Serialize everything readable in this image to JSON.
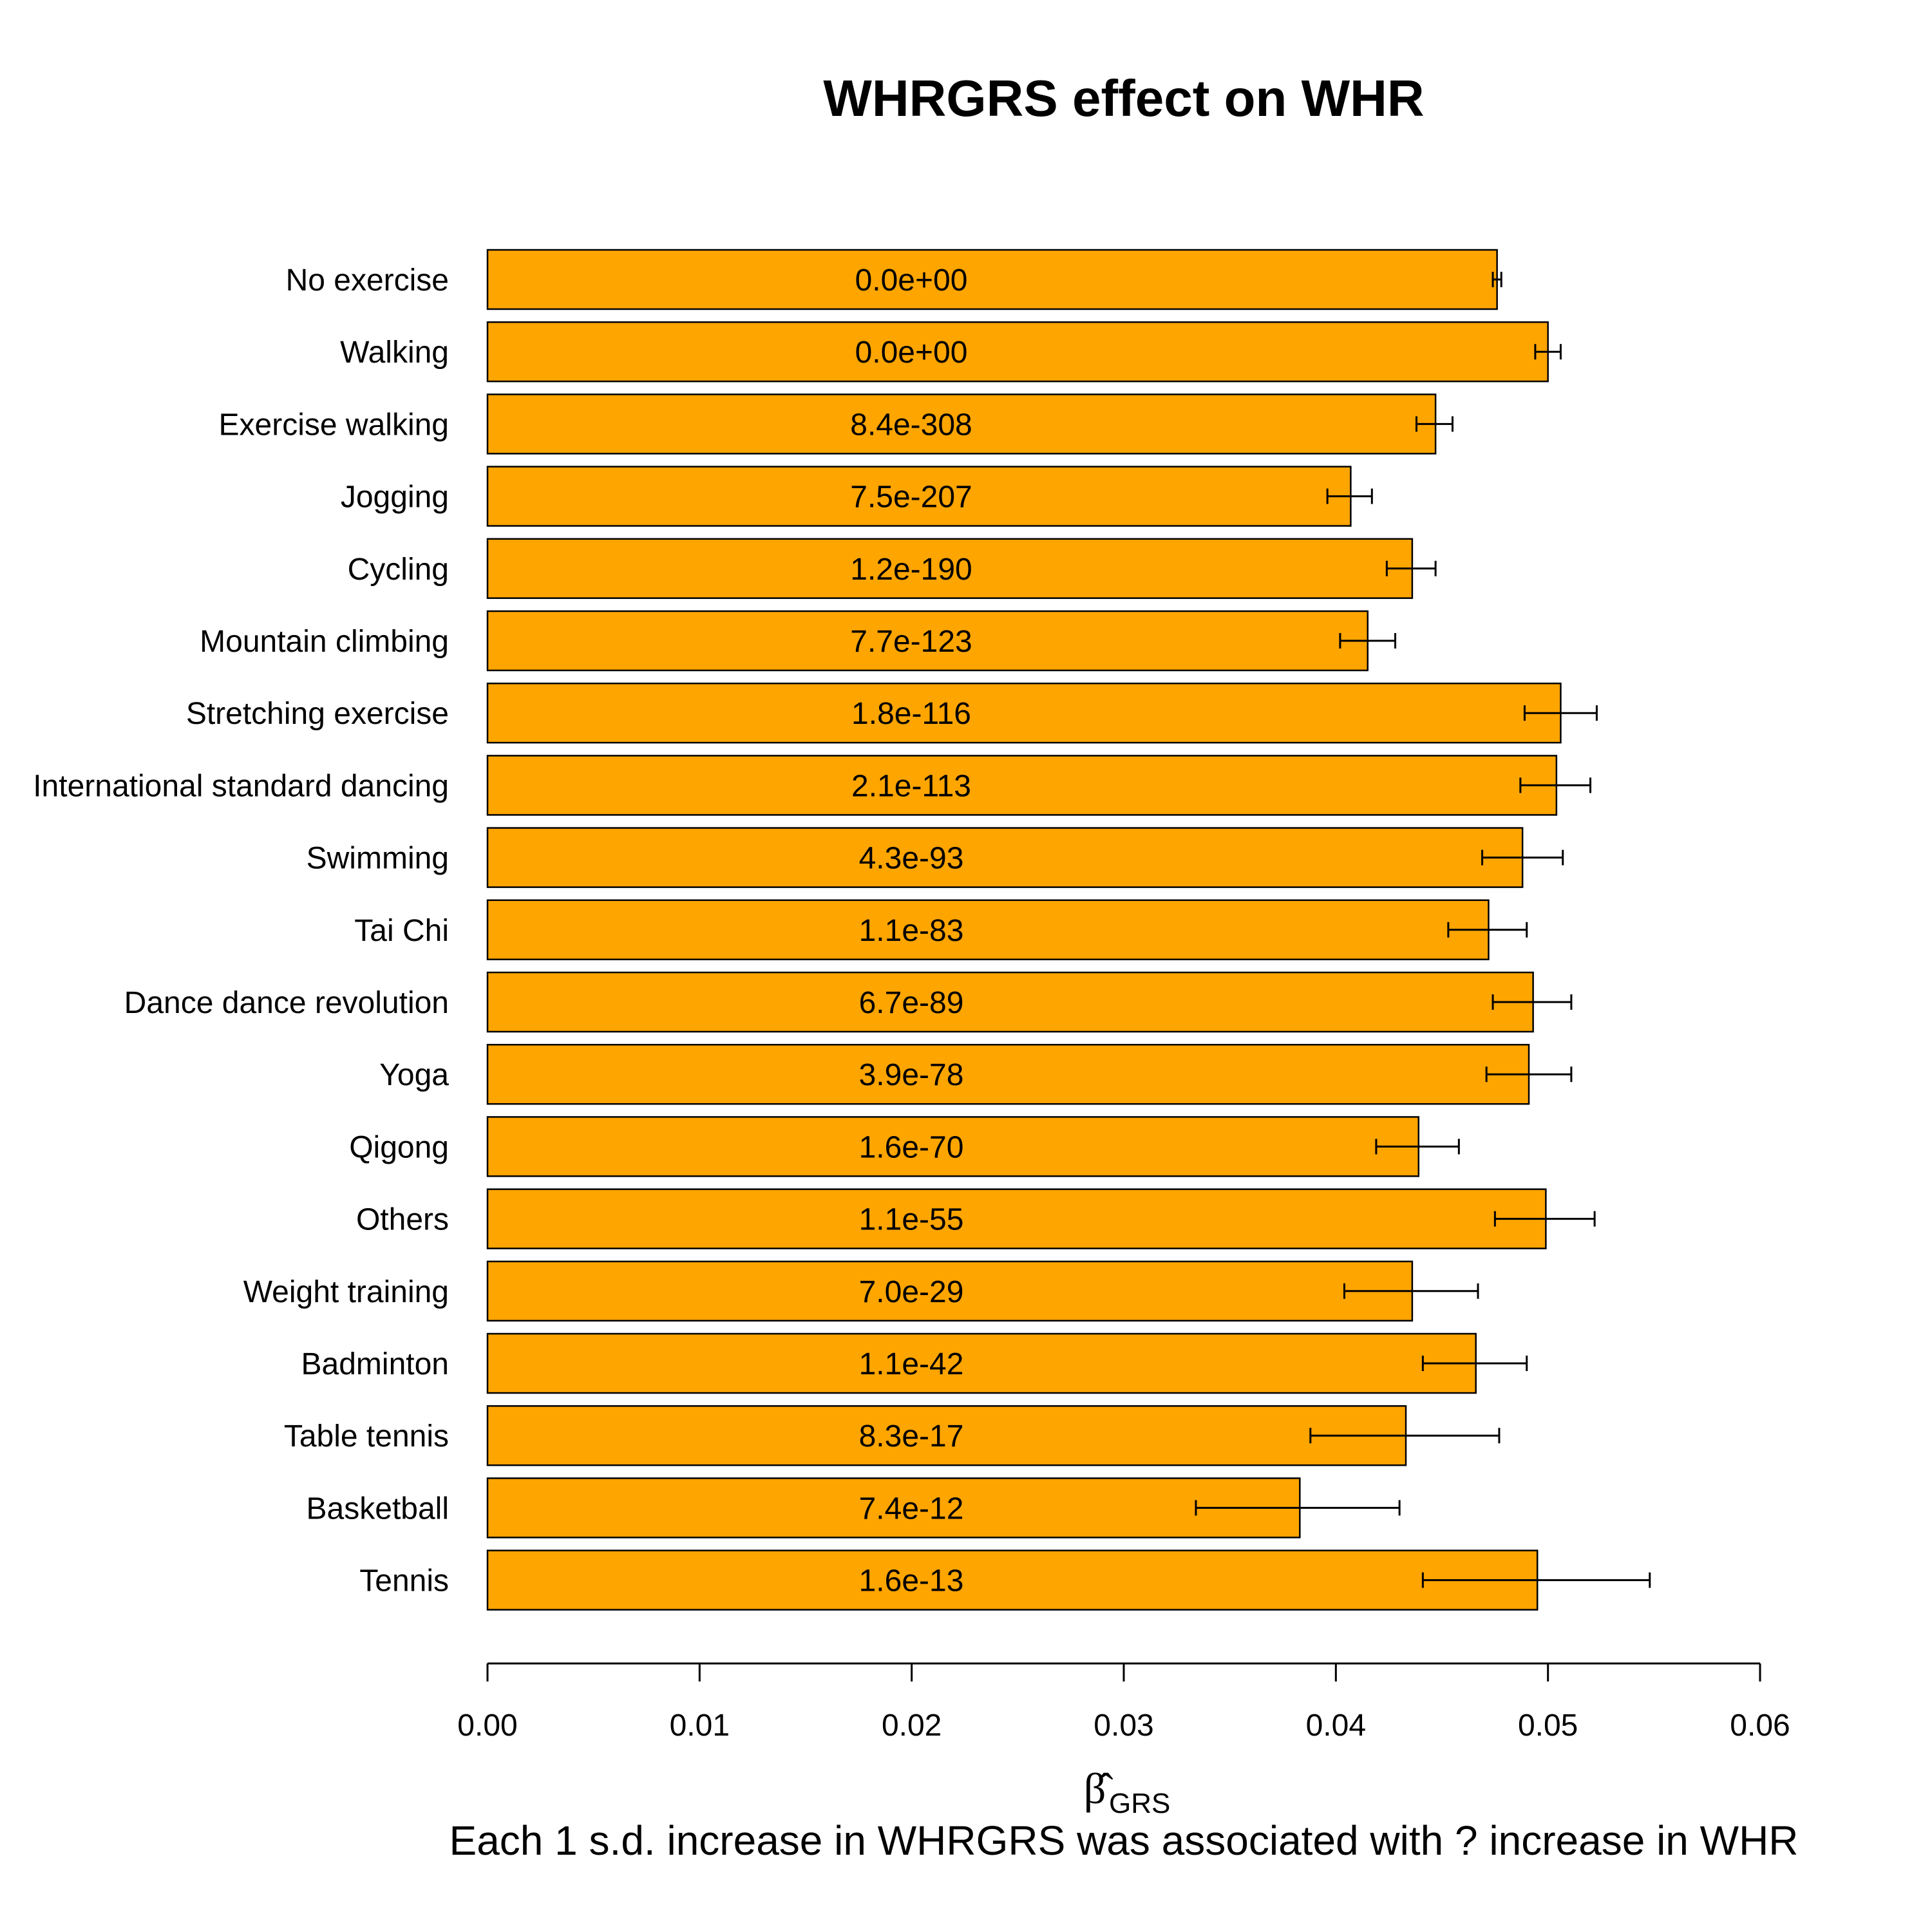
{
  "chart_data": {
    "type": "bar",
    "orientation": "horizontal",
    "title": "WHRGRS effect on WHR",
    "xlabel": "Each 1 s.d. increase in WHRGRS was associated with ? increase in WHR",
    "xlabel_symbol": "β̂",
    "xlabel_symbol_sub": "GRS",
    "xlim": [
      0,
      0.06
    ],
    "xticks": [
      0.0,
      0.01,
      0.02,
      0.03,
      0.04,
      0.05,
      0.06
    ],
    "xtick_labels": [
      "0.00",
      "0.01",
      "0.02",
      "0.03",
      "0.04",
      "0.05",
      "0.06"
    ],
    "bar_color": "#FFA500",
    "grid": false,
    "categories": [
      "No exercise",
      "Walking",
      "Exercise walking",
      "Jogging",
      "Cycling",
      "Mountain climbing",
      "Stretching exercise",
      "International standard dancing",
      "Swimming",
      "Tai Chi",
      "Dance dance revolution",
      "Yoga",
      "Qigong",
      "Others",
      "Weight training",
      "Badminton",
      "Table tennis",
      "Basketball",
      "Tennis"
    ],
    "values": [
      0.0476,
      0.05,
      0.0447,
      0.0407,
      0.0436,
      0.0415,
      0.0506,
      0.0504,
      0.0488,
      0.0472,
      0.0493,
      0.0491,
      0.0439,
      0.0499,
      0.0436,
      0.0466,
      0.0433,
      0.0383,
      0.0495
    ],
    "ci_low": [
      0.0474,
      0.0494,
      0.0438,
      0.0396,
      0.0424,
      0.0402,
      0.0489,
      0.0487,
      0.0469,
      0.0453,
      0.0474,
      0.0471,
      0.0419,
      0.0475,
      0.0404,
      0.0441,
      0.0388,
      0.0334,
      0.0441
    ],
    "ci_high": [
      0.0478,
      0.0506,
      0.0455,
      0.0417,
      0.0447,
      0.0428,
      0.0523,
      0.052,
      0.0507,
      0.049,
      0.0511,
      0.0511,
      0.0458,
      0.0522,
      0.0467,
      0.049,
      0.0477,
      0.043,
      0.0548
    ],
    "bar_labels": [
      "0.0e+00",
      "0.0e+00",
      "8.4e-308",
      "7.5e-207",
      "1.2e-190",
      "7.7e-123",
      "1.8e-116",
      "2.1e-113",
      "4.3e-93",
      "1.1e-83",
      "6.7e-89",
      "3.9e-78",
      "1.6e-70",
      "1.1e-55",
      "7.0e-29",
      "1.1e-42",
      "8.3e-17",
      "7.4e-12",
      "1.6e-13"
    ]
  }
}
